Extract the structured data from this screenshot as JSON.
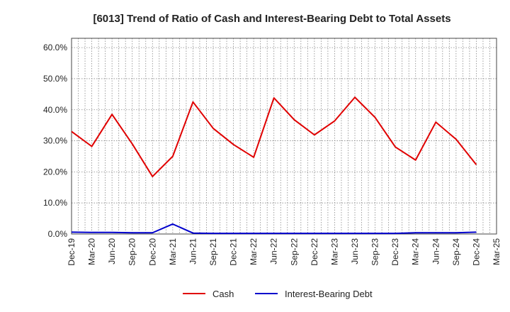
{
  "chart_data": {
    "type": "line",
    "title": "[6013]  Trend of Ratio of Cash and Interest-Bearing Debt to Total Assets",
    "xlabel": "",
    "ylabel": "",
    "ylim": [
      0,
      63
    ],
    "y_ticks": [
      "0.0%",
      "10.0%",
      "20.0%",
      "30.0%",
      "40.0%",
      "50.0%",
      "60.0%"
    ],
    "y_tick_values": [
      0,
      10,
      20,
      30,
      40,
      50,
      60
    ],
    "x_ticks": [
      "Dec-19",
      "Mar-20",
      "Jun-20",
      "Sep-20",
      "Dec-20",
      "Mar-21",
      "Jun-21",
      "Sep-21",
      "Dec-21",
      "Mar-22",
      "Jun-22",
      "Sep-22",
      "Dec-22",
      "Mar-23",
      "Jun-23",
      "Sep-23",
      "Dec-23",
      "Mar-24",
      "Jun-24",
      "Sep-24",
      "Dec-24",
      "Mar-25"
    ],
    "grid": true,
    "legend_position": "bottom",
    "series": [
      {
        "name": "Cash",
        "color": "#e00000",
        "values": [
          33.0,
          28.2,
          38.5,
          29.0,
          18.5,
          25.0,
          42.5,
          34.0,
          28.8,
          24.7,
          43.8,
          36.8,
          31.9,
          36.4,
          44.0,
          37.5,
          28.0,
          23.8,
          36.0,
          30.5,
          22.3
        ]
      },
      {
        "name": "Interest-Bearing Debt",
        "color": "#0000cc",
        "values": [
          0.6,
          0.5,
          0.5,
          0.4,
          0.4,
          3.2,
          0.3,
          0.2,
          0.2,
          0.2,
          0.2,
          0.2,
          0.2,
          0.2,
          0.2,
          0.2,
          0.2,
          0.4,
          0.4,
          0.4,
          0.6
        ]
      }
    ]
  }
}
